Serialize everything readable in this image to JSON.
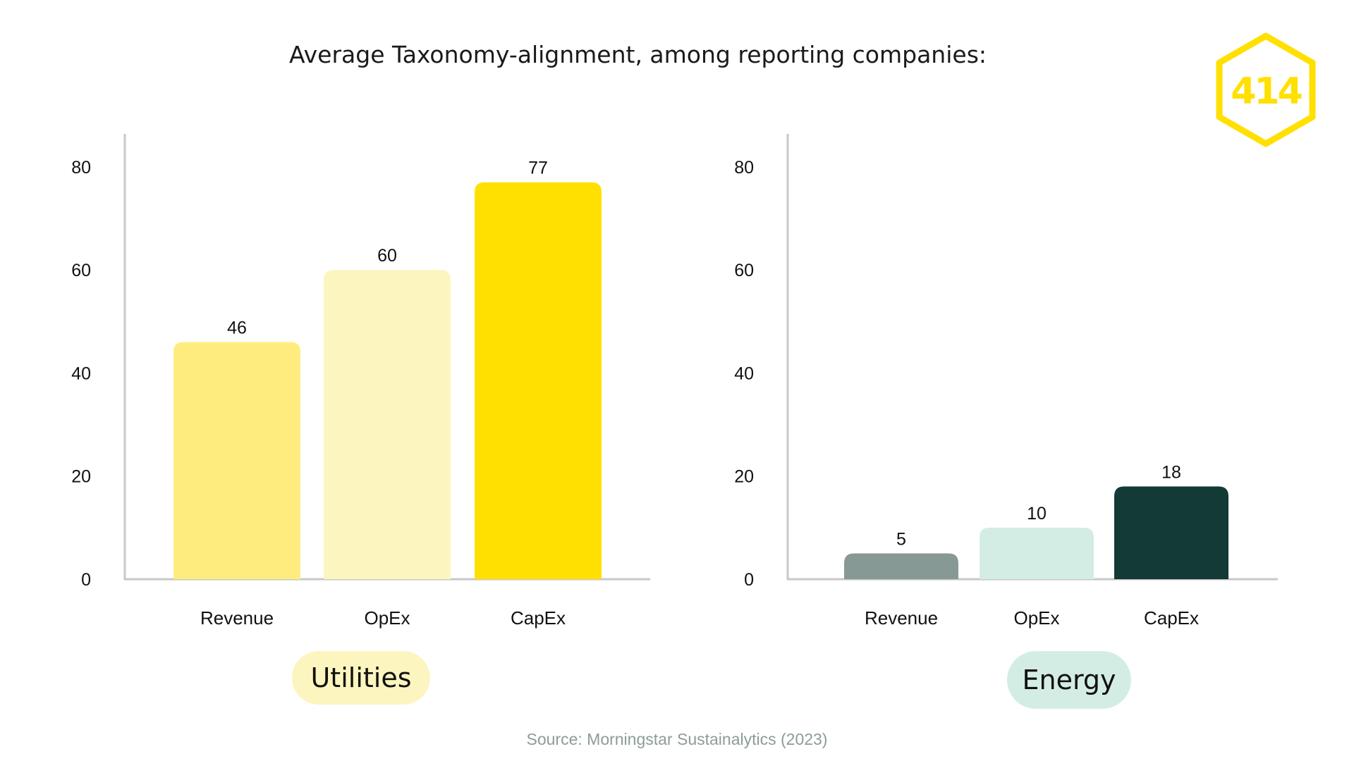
{
  "title": "Average Taxonomy-alignment, among reporting companies:",
  "logo": {
    "text": "414",
    "color": "#ffe000",
    "icon": "hexagon-logo-icon"
  },
  "source": "Source: Morningstar Sustainalytics (2023)",
  "chart_data": [
    {
      "type": "bar",
      "panel_label": "Utilities",
      "categories": [
        "Revenue",
        "OpEx",
        "CapEx"
      ],
      "values": [
        46,
        60,
        77
      ],
      "colors": [
        "#feed7e",
        "#fdf5bf",
        "#ffe000"
      ],
      "ylim": [
        0,
        86
      ],
      "yticks": [
        0,
        20,
        40,
        60,
        80
      ],
      "grid": false,
      "legend": "none"
    },
    {
      "type": "bar",
      "panel_label": "Energy",
      "categories": [
        "Revenue",
        "OpEx",
        "CapEx"
      ],
      "values": [
        5,
        10,
        18
      ],
      "colors": [
        "#879994",
        "#d4ede4",
        "#133a35"
      ],
      "ylim": [
        0,
        86
      ],
      "yticks": [
        0,
        20,
        40,
        60,
        80
      ],
      "grid": false,
      "legend": "none"
    }
  ]
}
